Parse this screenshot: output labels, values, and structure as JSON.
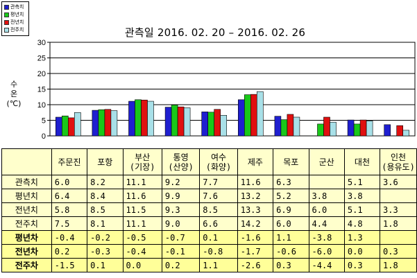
{
  "title": "관측일 2016. 02. 20 – 2016. 02. 26",
  "ylabel_lines": [
    "수",
    "온",
    "(℃)"
  ],
  "legend": [
    "관측치",
    "평년치",
    "전년치",
    "전주치"
  ],
  "colors": {
    "관측치": "#1f1fd0",
    "평년치": "#19c819",
    "전년치": "#e01010",
    "전주치": "#a8e0e8"
  },
  "chart_data": {
    "type": "bar",
    "categories": [
      "주문진",
      "포항",
      "부산(기장)",
      "통영(산양)",
      "여수(화양)",
      "제주",
      "목포",
      "군산",
      "대천",
      "인천(용유도)"
    ],
    "series": [
      {
        "name": "관측치",
        "values": [
          6.0,
          8.2,
          11.1,
          9.2,
          7.7,
          11.6,
          6.3,
          null,
          5.1,
          3.6
        ]
      },
      {
        "name": "평년치",
        "values": [
          6.4,
          8.4,
          11.6,
          9.9,
          7.6,
          13.2,
          5.2,
          3.8,
          3.8,
          null
        ]
      },
      {
        "name": "전년치",
        "values": [
          5.8,
          8.5,
          11.5,
          9.3,
          8.5,
          13.3,
          6.9,
          6.0,
          5.1,
          3.3
        ]
      },
      {
        "name": "전주치",
        "values": [
          7.5,
          8.1,
          11.1,
          9.0,
          6.6,
          14.2,
          6.0,
          4.4,
          4.8,
          1.8
        ]
      }
    ],
    "ylim": [
      0,
      30
    ],
    "yticks": [
      "0",
      "5",
      "10",
      "15",
      "20",
      "25",
      "30"
    ],
    "grid": true,
    "legend_position": "top-left"
  },
  "table": {
    "header": [
      [
        "주문진"
      ],
      [
        "포항"
      ],
      [
        "부산",
        "(기장)"
      ],
      [
        "통영",
        "(산양)"
      ],
      [
        "여수",
        "(화양)"
      ],
      [
        "제주"
      ],
      [
        "목포"
      ],
      [
        "군산"
      ],
      [
        "대천"
      ],
      [
        "인천",
        "(용유도)"
      ]
    ],
    "rows": [
      {
        "label": "관측치",
        "cells": [
          "6.0",
          "8.2",
          "11.1",
          "9.2",
          "7.7",
          "11.6",
          "6.3",
          "",
          "5.1",
          "3.6"
        ]
      },
      {
        "label": "평년치",
        "cells": [
          "6.4",
          "8.4",
          "11.6",
          "9.9",
          "7.6",
          "13.2",
          "5.2",
          "3.8",
          "3.8",
          ""
        ]
      },
      {
        "label": "전년치",
        "cells": [
          "5.8",
          "8.5",
          "11.5",
          "9.3",
          "8.5",
          "13.3",
          "6.9",
          "6.0",
          "5.1",
          "3.3"
        ]
      },
      {
        "label": "전주치",
        "cells": [
          "7.5",
          "8.1",
          "11.1",
          "9.0",
          "6.6",
          "14.2",
          "6.0",
          "4.4",
          "4.8",
          "1.8"
        ]
      },
      {
        "label": "평년차",
        "cells": [
          "-0.4",
          "-0.2",
          "-0.5",
          "-0.7",
          "0.1",
          "-1.6",
          "1.1",
          "-3.8",
          "1.3",
          ""
        ]
      },
      {
        "label": "전년차",
        "cells": [
          "0.2",
          "-0.3",
          "-0.4",
          "-0.1",
          "-0.8",
          "-1.7",
          "-0.6",
          "-6.0",
          "0.0",
          "0.3"
        ]
      },
      {
        "label": "전주차",
        "cells": [
          "-1.5",
          "0.1",
          "0.0",
          "0.2",
          "1.1",
          "-2.6",
          "0.3",
          "-4.4",
          "0.3",
          "1.8"
        ]
      }
    ]
  }
}
